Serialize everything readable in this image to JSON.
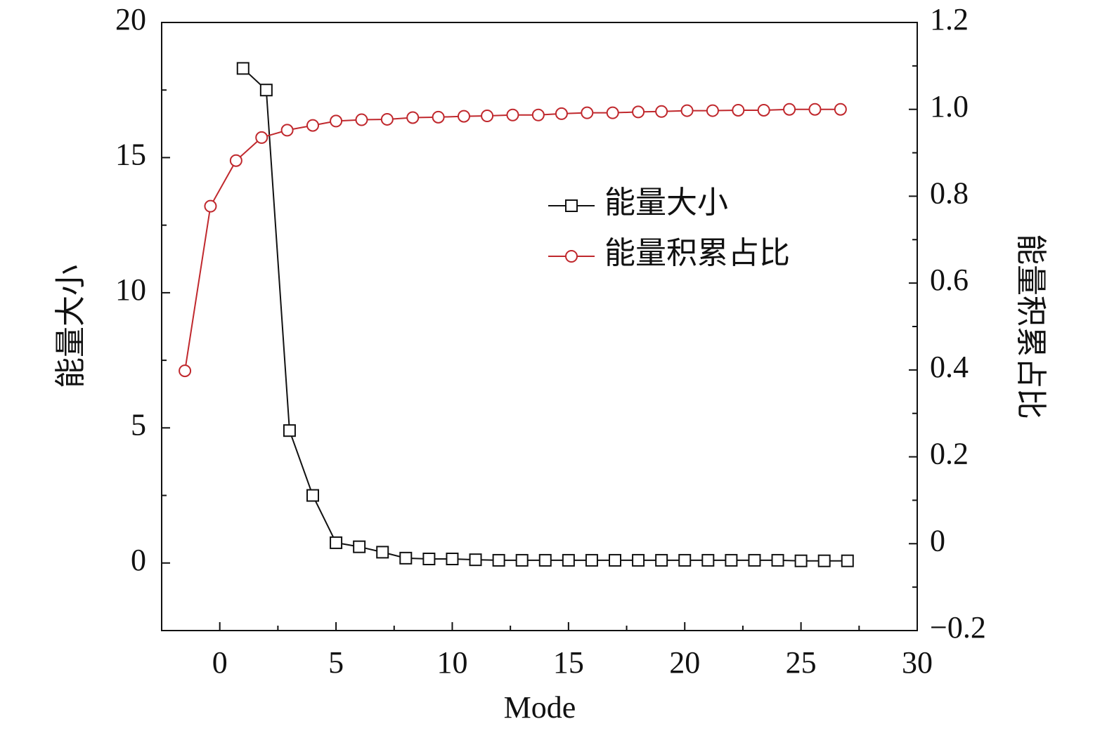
{
  "chart_data": {
    "type": "line",
    "xlabel": "Mode",
    "ylabel": "能量大小",
    "y2label": "能量积累占比",
    "xlim": [
      -2.5,
      30
    ],
    "xticks": [
      0,
      5,
      10,
      15,
      20,
      25,
      30
    ],
    "ylim": [
      -2.5,
      20
    ],
    "yticks": [
      0,
      5,
      10,
      15,
      20
    ],
    "y2lim": [
      -0.2,
      1.2
    ],
    "y2ticks": [
      {
        "value": -0.2,
        "label": "−0.2"
      },
      0,
      0.2,
      0.4,
      0.6,
      0.8,
      {
        "value": 1.0,
        "label": "1.0"
      },
      1.2
    ],
    "legend": "upper-right",
    "series": [
      {
        "name": "能量大小",
        "color": "#111111",
        "marker": "square",
        "x": [
          1,
          2,
          3,
          4,
          5,
          6,
          7,
          8,
          9,
          10,
          11,
          12,
          13,
          14,
          15,
          16,
          17,
          18,
          19,
          20,
          21,
          22,
          23,
          24,
          25,
          26,
          27
        ],
        "values": [
          18.3,
          17.5,
          4.9,
          2.5,
          0.75,
          0.6,
          0.4,
          0.18,
          0.15,
          0.15,
          0.12,
          0.1,
          0.1,
          0.1,
          0.1,
          0.1,
          0.1,
          0.1,
          0.1,
          0.1,
          0.1,
          0.1,
          0.1,
          0.1,
          0.08,
          0.08,
          0.08
        ]
      },
      {
        "name": "能量积累占比",
        "color": "#c0282d",
        "marker": "circle",
        "axis": "y2",
        "x": [
          -1.5,
          -0.4,
          0.7,
          1.8,
          2.9,
          4.0,
          5.0,
          6.1,
          7.2,
          8.3,
          9.4,
          10.5,
          11.5,
          12.6,
          13.7,
          14.7,
          15.8,
          16.9,
          18.0,
          19.0,
          20.1,
          21.2,
          22.3,
          23.4,
          24.5,
          25.6,
          26.7
        ],
        "values": [
          0.398,
          0.777,
          0.882,
          0.935,
          0.952,
          0.963,
          0.973,
          0.976,
          0.977,
          0.981,
          0.982,
          0.984,
          0.985,
          0.987,
          0.987,
          0.99,
          0.992,
          0.992,
          0.994,
          0.995,
          0.997,
          0.997,
          0.998,
          0.998,
          1.0,
          1.0,
          1.0
        ]
      }
    ]
  }
}
